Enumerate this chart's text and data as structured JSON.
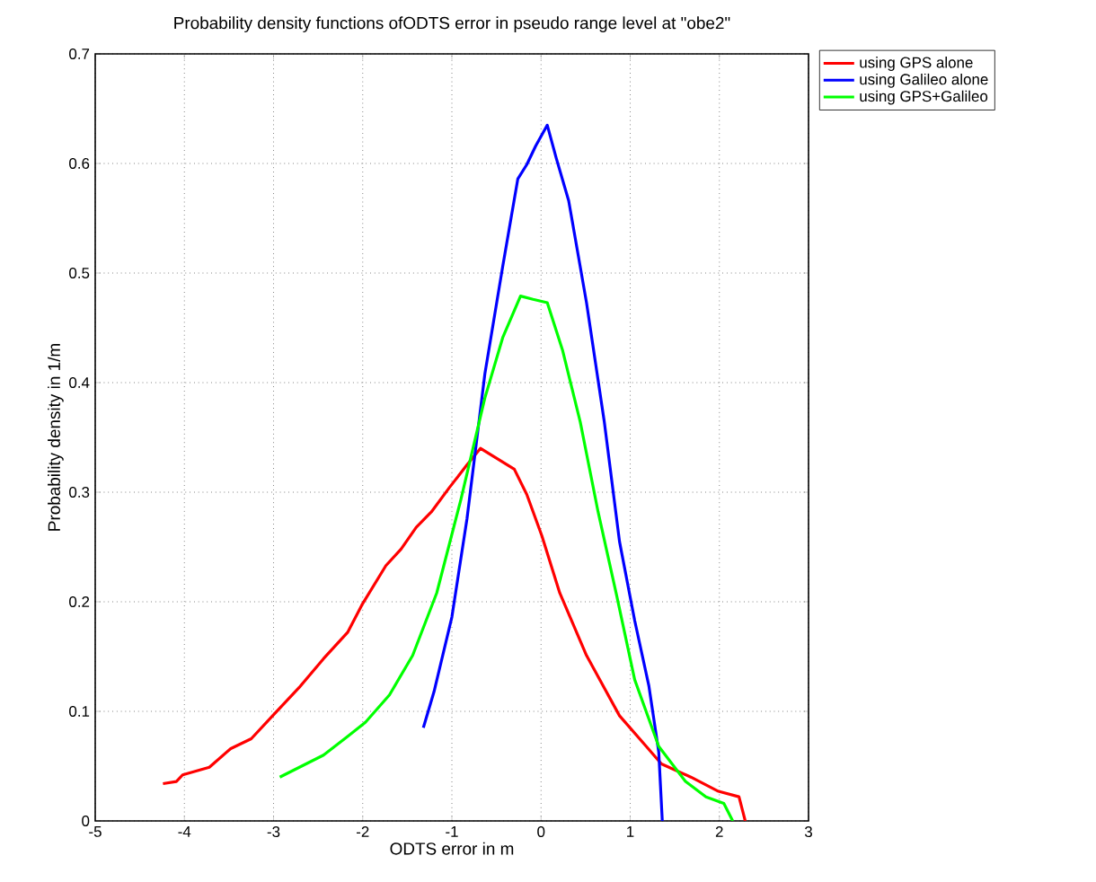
{
  "chart_data": {
    "type": "line",
    "title": "Probability density functions ofODTS error in pseudo range level at \"obe2\"",
    "xlabel": "ODTS error in m",
    "ylabel": "Probability density in 1/m",
    "xlim": [
      -5,
      3
    ],
    "ylim": [
      0,
      0.7
    ],
    "xticks": [
      -5,
      -4,
      -3,
      -2,
      -1,
      0,
      1,
      2,
      3
    ],
    "yticks": [
      0,
      0.1,
      0.2,
      0.3,
      0.4,
      0.5,
      0.6,
      0.7
    ],
    "grid": true,
    "legend": "top right",
    "line_style": "solid",
    "marker": "none",
    "series": [
      {
        "name": "using GPS alone",
        "color": "#ff0000",
        "x": [
          -4.24,
          -4.09,
          -4.02,
          -3.72,
          -3.48,
          -3.25,
          -3.01,
          -2.71,
          -2.44,
          -2.17,
          -2.01,
          -1.74,
          -1.57,
          -1.4,
          -1.23,
          -1.03,
          -0.83,
          -0.68,
          -0.5,
          -0.3,
          -0.16,
          0.01,
          0.21,
          0.51,
          0.88,
          1.18,
          1.35,
          1.68,
          1.99,
          2.22,
          2.29
        ],
        "values": [
          0.034,
          0.036,
          0.042,
          0.049,
          0.066,
          0.075,
          0.096,
          0.122,
          0.148,
          0.172,
          0.197,
          0.233,
          0.248,
          0.268,
          0.282,
          0.304,
          0.325,
          0.34,
          0.331,
          0.321,
          0.298,
          0.26,
          0.208,
          0.151,
          0.096,
          0.068,
          0.052,
          0.04,
          0.027,
          0.022,
          0.0
        ]
      },
      {
        "name": "using Galileo alone",
        "color": "#0000ff",
        "x": [
          -1.32,
          -1.2,
          -1.0,
          -0.83,
          -0.63,
          -0.43,
          -0.26,
          -0.16,
          -0.06,
          0.07,
          0.17,
          0.31,
          0.51,
          0.71,
          0.88,
          1.05,
          1.21,
          1.32,
          1.36
        ],
        "values": [
          0.085,
          0.118,
          0.186,
          0.276,
          0.408,
          0.506,
          0.586,
          0.599,
          0.616,
          0.635,
          0.605,
          0.566,
          0.473,
          0.364,
          0.255,
          0.183,
          0.123,
          0.063,
          0.0
        ]
      },
      {
        "name": "using GPS+Galileo",
        "color": "#00ff00",
        "x": [
          -2.93,
          -2.71,
          -2.44,
          -2.17,
          -1.97,
          -1.7,
          -1.44,
          -1.17,
          -0.9,
          -0.63,
          -0.43,
          -0.23,
          -0.09,
          0.07,
          0.24,
          0.44,
          0.64,
          0.85,
          1.05,
          1.32,
          1.62,
          1.85,
          2.05,
          2.15
        ],
        "values": [
          0.04,
          0.049,
          0.06,
          0.077,
          0.09,
          0.115,
          0.151,
          0.208,
          0.293,
          0.386,
          0.441,
          0.479,
          0.476,
          0.473,
          0.43,
          0.364,
          0.282,
          0.205,
          0.129,
          0.068,
          0.036,
          0.022,
          0.016,
          0.0
        ]
      }
    ]
  }
}
